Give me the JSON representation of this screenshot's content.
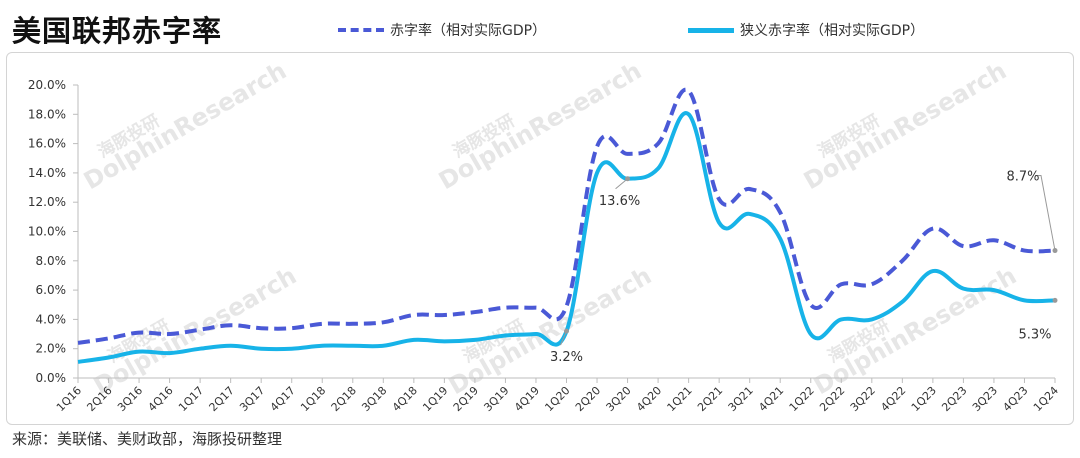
{
  "title": "美国联邦赤字率",
  "source": "来源：美联储、美财政部，海豚投研整理",
  "chart_data": {
    "type": "line",
    "categories": [
      "1Q16",
      "2Q16",
      "3Q16",
      "4Q16",
      "1Q17",
      "2Q17",
      "3Q17",
      "4Q17",
      "1Q18",
      "2Q18",
      "3Q18",
      "4Q18",
      "1Q19",
      "2Q19",
      "3Q19",
      "4Q19",
      "1Q20",
      "2Q20",
      "3Q20",
      "4Q20",
      "1Q21",
      "2Q21",
      "3Q21",
      "4Q21",
      "1Q22",
      "2Q22",
      "3Q22",
      "4Q22",
      "1Q23",
      "2Q23",
      "3Q23",
      "4Q23",
      "1Q24"
    ],
    "ylim": [
      0,
      20
    ],
    "yticks": [
      "0.0%",
      "2.0%",
      "4.0%",
      "6.0%",
      "8.0%",
      "10.0%",
      "12.0%",
      "14.0%",
      "16.0%",
      "18.0%",
      "20.0%"
    ],
    "series": [
      {
        "name": "赤字率（相对实际GDP）",
        "color": "#4a59d6",
        "style": "dashed",
        "values": [
          2.4,
          2.7,
          3.1,
          3.0,
          3.3,
          3.6,
          3.4,
          3.4,
          3.7,
          3.7,
          3.8,
          4.3,
          4.3,
          4.5,
          4.8,
          4.8,
          4.9,
          15.8,
          15.3,
          16.0,
          19.6,
          12.2,
          12.9,
          11.3,
          5.0,
          6.4,
          6.4,
          8.0,
          10.2,
          9.0,
          9.4,
          8.7,
          8.7
        ]
      },
      {
        "name": "狭义赤字率（相对实际GDP）",
        "color": "#17b3e8",
        "style": "solid",
        "values": [
          1.1,
          1.4,
          1.8,
          1.7,
          2.0,
          2.2,
          2.0,
          2.0,
          2.2,
          2.2,
          2.2,
          2.6,
          2.5,
          2.6,
          2.9,
          3.0,
          3.2,
          14.0,
          13.6,
          14.3,
          18.0,
          10.6,
          11.2,
          9.5,
          3.0,
          4.0,
          4.0,
          5.2,
          7.3,
          6.1,
          6.0,
          5.3,
          5.3
        ]
      }
    ],
    "annotations": [
      {
        "text": "3.2%",
        "series": 1,
        "index": 16
      },
      {
        "text": "13.6%",
        "series": 1,
        "index": 18
      },
      {
        "text": "8.7%",
        "series": 0,
        "index": 32
      },
      {
        "text": "5.3%",
        "series": 1,
        "index": 32
      }
    ],
    "grid": false,
    "legend_position": "top"
  },
  "watermark": {
    "cn": "海豚投研",
    "en": "DolphinResearch"
  }
}
